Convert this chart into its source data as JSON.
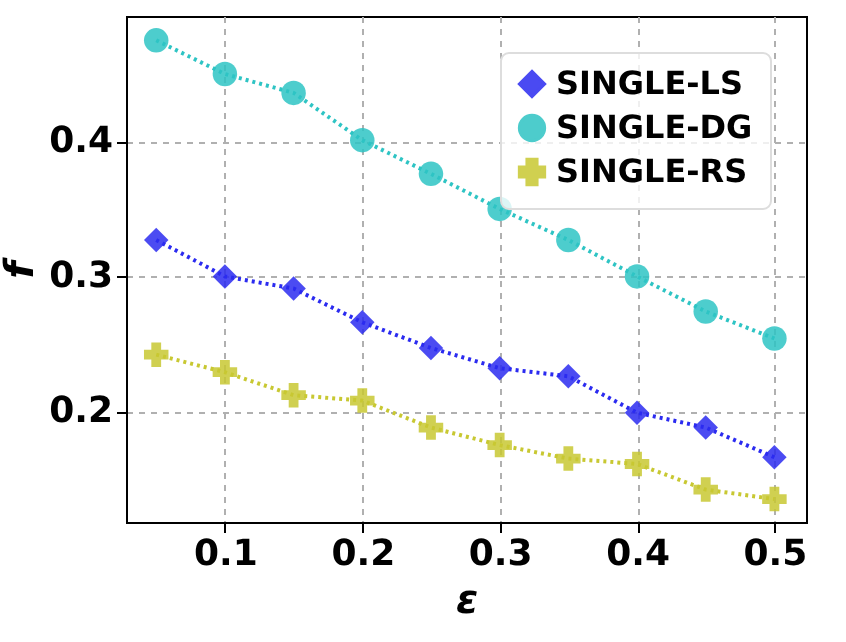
{
  "chart_data": {
    "type": "line",
    "xlabel": "ε",
    "ylabel": "f",
    "x": [
      0.05,
      0.1,
      0.15,
      0.2,
      0.25,
      0.3,
      0.35,
      0.4,
      0.45,
      0.5
    ],
    "series": [
      {
        "name": "SINGLE-LS",
        "color": "#2b2bf0",
        "marker": "diamond",
        "values": [
          0.327,
          0.3,
          0.291,
          0.266,
          0.247,
          0.232,
          0.226,
          0.199,
          0.188,
          0.166
        ]
      },
      {
        "name": "SINGLE-DG",
        "color": "#2ec4c4",
        "marker": "circle",
        "values": [
          0.475,
          0.45,
          0.436,
          0.401,
          0.376,
          0.35,
          0.327,
          0.3,
          0.274,
          0.254
        ]
      },
      {
        "name": "SINGLE-RS",
        "color": "#c8c832",
        "marker": "cross",
        "values": [
          0.242,
          0.229,
          0.212,
          0.208,
          0.188,
          0.175,
          0.165,
          0.161,
          0.142,
          0.135
        ]
      }
    ],
    "xlim": [
      0.028,
      0.523
    ],
    "xticks": [
      0.1,
      0.2,
      0.3,
      0.4,
      0.5
    ],
    "ylim": [
      0.118,
      0.493
    ],
    "yticks": [
      0.2,
      0.3,
      0.4
    ],
    "grid": true,
    "legend": "top right",
    "line_style": "dotted"
  }
}
